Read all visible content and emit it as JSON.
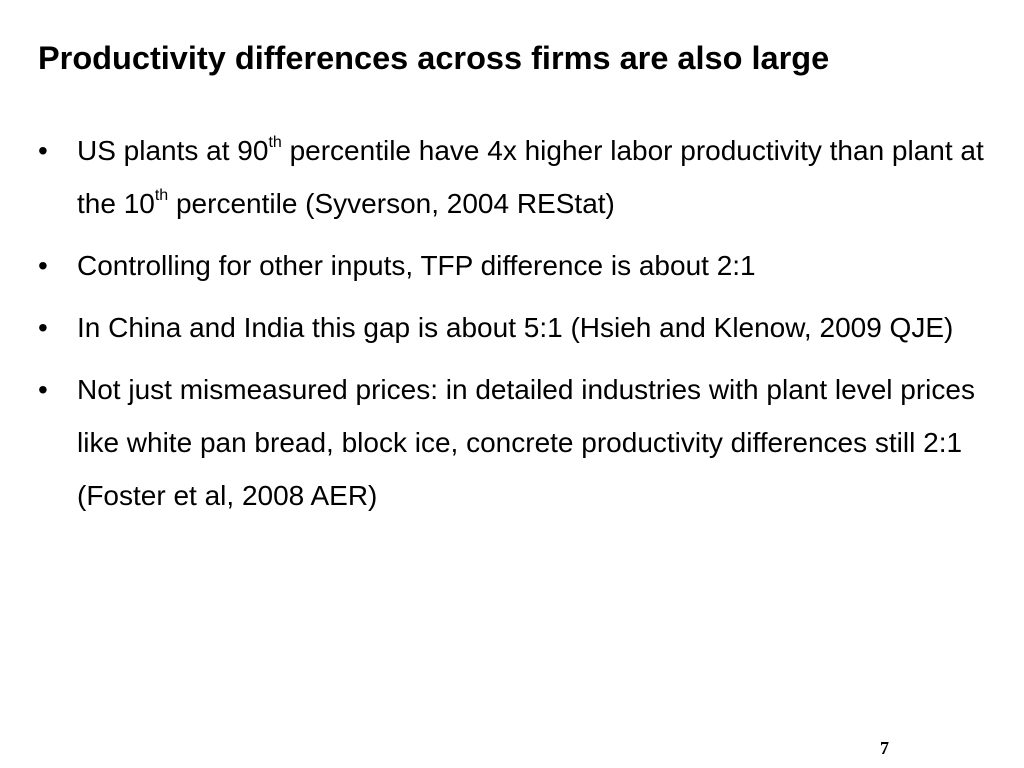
{
  "title": "Productivity differences across firms are also large",
  "bullets": [
    [
      "US plants at 90",
      {
        "sup": "th"
      },
      " percentile have 4x higher labor productivity than plant at the 10",
      {
        "sup": "th"
      },
      " percentile (Syverson, 2004 REStat)"
    ],
    [
      "Controlling for other inputs, TFP difference is about 2:1"
    ],
    [
      "In China and India this gap is about 5:1 (Hsieh and Klenow, 2009 QJE)"
    ],
    [
      "Not just mismeasured prices: in detailed industries with plant level prices like white pan bread, block ice, concrete productivity differences still 2:1 (Foster et al, 2008 AER)"
    ]
  ],
  "page_number": "7"
}
